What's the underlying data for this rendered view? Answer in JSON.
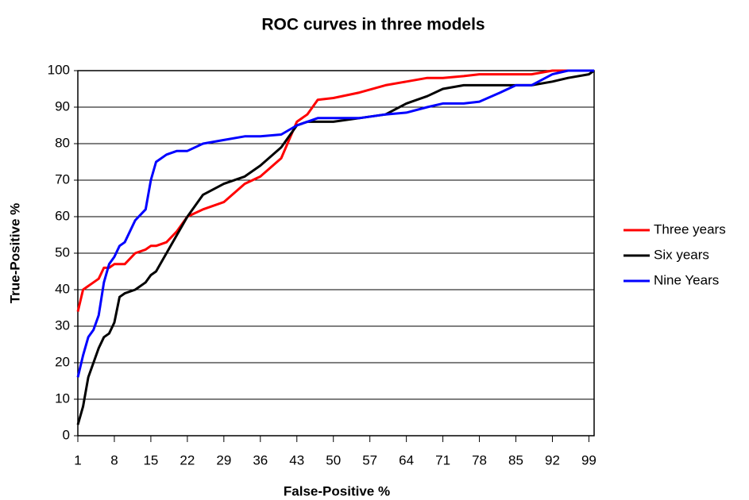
{
  "chart_data": {
    "type": "line",
    "title": "ROC curves in three models",
    "x_label": "False-Positive %",
    "y_label": "True-Positive %",
    "x": [
      1,
      2,
      3,
      4,
      5,
      6,
      7,
      8,
      9,
      10,
      12,
      14,
      15,
      16,
      18,
      20,
      22,
      25,
      29,
      33,
      36,
      40,
      43,
      45,
      47,
      50,
      55,
      60,
      64,
      68,
      71,
      75,
      78,
      82,
      85,
      88,
      92,
      95,
      99,
      100
    ],
    "series": [
      {
        "name": "Three years",
        "color": "#ff0000",
        "values": [
          34,
          40,
          41,
          42,
          43,
          46,
          46,
          47,
          47,
          47,
          50,
          51,
          52,
          52,
          53,
          56,
          60,
          62,
          64,
          69,
          71,
          76,
          86,
          88,
          92,
          92.5,
          94,
          96,
          97,
          98,
          98,
          98.5,
          99,
          99,
          99,
          99,
          100,
          100,
          100,
          100
        ]
      },
      {
        "name": "Six years",
        "color": "#000000",
        "values": [
          3,
          8,
          16,
          20,
          24,
          27,
          28,
          31,
          38,
          39,
          40,
          42,
          44,
          45,
          50,
          55,
          60,
          66,
          69,
          71,
          74,
          79,
          85,
          86,
          86,
          86,
          87,
          88,
          91,
          93,
          95,
          96,
          96,
          96,
          96,
          96,
          97,
          98,
          99,
          100
        ]
      },
      {
        "name": "Nine Years",
        "color": "#0000ff",
        "values": [
          16,
          22,
          27,
          29,
          33,
          42,
          47,
          49,
          52,
          53,
          59,
          62,
          70,
          75,
          77,
          78,
          78,
          80,
          81,
          82,
          82,
          82.5,
          85,
          86,
          87,
          87,
          87,
          88,
          88.5,
          90,
          91,
          91,
          91.5,
          94,
          96,
          96,
          99,
          100,
          100,
          100
        ]
      }
    ],
    "xlim": [
      1,
      100
    ],
    "xticks": [
      1,
      8,
      15,
      22,
      29,
      36,
      43,
      50,
      57,
      64,
      71,
      78,
      85,
      92,
      99
    ],
    "ylim": [
      0,
      100
    ],
    "yticks": [
      0,
      10,
      20,
      30,
      40,
      50,
      60,
      70,
      80,
      90,
      100
    ],
    "grid": true,
    "legend": "right"
  }
}
